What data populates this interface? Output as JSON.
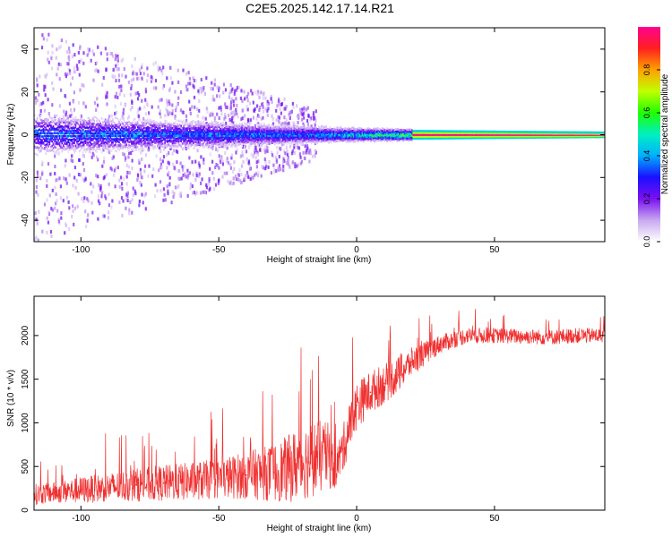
{
  "title": "C2E5.2025.142.17.14.R21",
  "chart_data": [
    {
      "type": "heatmap",
      "title": "C2E5.2025.142.17.14.R21",
      "xlabel": "Height of straight line (km)",
      "ylabel": "Frequency (Hz)",
      "xlim": [
        -117,
        90
      ],
      "ylim": [
        -50,
        50
      ],
      "x_ticks": [
        -100,
        -50,
        0,
        50
      ],
      "y_ticks": [
        -40,
        -20,
        0,
        20,
        40
      ],
      "colorbar": {
        "label": "Normalized spectral amplitude",
        "range": [
          0,
          1
        ],
        "ticks": [
          0.0,
          0.2,
          0.4,
          0.6,
          0.8
        ],
        "tick_labels": [
          "0.0",
          "0.2",
          "0.4",
          "0.6",
          "0.8"
        ],
        "colormap": [
          "#ffffff",
          "#c8a8f0",
          "#7a10f0",
          "#1a10ff",
          "#00b0ff",
          "#00f0c0",
          "#20ff00",
          "#c0ff00",
          "#ffa000",
          "#ff2020",
          "#ff0090"
        ]
      },
      "structure": {
        "central_line_frequency_hz": 0,
        "narrow_band_start_km": 20,
        "band_halfwidth_hz_at_-117km": 6,
        "band_halfwidth_hz_at_0km": 2,
        "band_halfwidth_hz_at_90km": 1,
        "peak_amplitude_above_20km": 1.0,
        "peak_amplitude_below_-20km": 0.45,
        "noise_scatter_extent_km": [
          -117,
          -15
        ]
      }
    },
    {
      "type": "line",
      "xlabel": "Height of straight line (km)",
      "ylabel": "SNR (10 * v/v)",
      "xlim": [
        -117,
        90
      ],
      "ylim": [
        0,
        2450
      ],
      "x_ticks": [
        -100,
        -50,
        0,
        50
      ],
      "y_ticks": [
        0,
        500,
        1000,
        1500,
        2000
      ],
      "color": "#f03030",
      "x": [
        -117,
        -110,
        -100,
        -90,
        -80,
        -70,
        -60,
        -50,
        -40,
        -30,
        -25,
        -20,
        -15,
        -10,
        -8,
        -5,
        0,
        5,
        10,
        15,
        20,
        25,
        30,
        35,
        40,
        50,
        60,
        70,
        80,
        90
      ],
      "y": [
        180,
        200,
        230,
        260,
        290,
        310,
        330,
        360,
        400,
        430,
        470,
        550,
        600,
        620,
        450,
        700,
        1200,
        1350,
        1450,
        1550,
        1700,
        1800,
        1900,
        1950,
        2000,
        2000,
        1990,
        1980,
        2000,
        2000
      ],
      "noise_amplitude_shown": [
        220,
        220,
        280,
        300,
        350,
        380,
        400,
        420,
        500,
        600,
        700,
        800,
        800,
        700,
        400,
        500,
        500,
        450,
        420,
        380,
        300,
        250,
        200,
        180,
        170,
        160,
        160,
        160,
        160,
        160
      ]
    }
  ]
}
